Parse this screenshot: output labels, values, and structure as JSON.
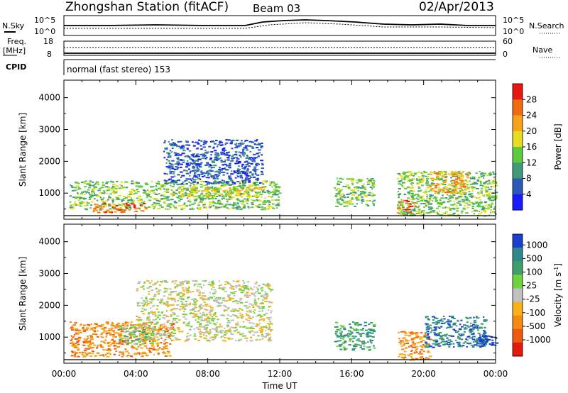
{
  "header": {
    "station": "Zhongshan Station (fitACF)",
    "beam": "Beam 03",
    "date": "02/Apr/2013"
  },
  "param_panels": {
    "nsky_label": "N.Sky",
    "nsky_ticks": [
      "10^5",
      "10^0"
    ],
    "nsearch_label": "N.Search",
    "nsearch_ticks": [
      "10^5",
      "10^0"
    ],
    "freq_label": "Freq.",
    "freq_unit": "[MHz]",
    "freq_ticks": [
      "18",
      "8"
    ],
    "nave_label": "Nave",
    "nave_ticks": [
      "60",
      "0"
    ],
    "cpid_label": "CPID",
    "cpid_text": "normal (fast stereo) 153"
  },
  "chart_data": [
    {
      "type": "heatmap",
      "title": "",
      "xlabel": "Time UT",
      "ylabel": "Slant Range [km]",
      "x_ticks": [
        "00:00",
        "04:00",
        "08:00",
        "12:00",
        "16:00",
        "20:00",
        "00:00"
      ],
      "xlim": [
        0,
        24
      ],
      "y_ticks": [
        1000,
        2000,
        3000,
        4000
      ],
      "ylim": [
        180,
        4550
      ],
      "colorbar": {
        "label": "Power [dB]",
        "ticks": [
          "4",
          "8",
          "12",
          "16",
          "20",
          "24",
          "28"
        ],
        "colors": [
          "#1a1aff",
          "#2a5ab5",
          "#3f9a7a",
          "#5fc83c",
          "#e6dc20",
          "#f7a21a",
          "#f06a12",
          "#e8160e"
        ]
      },
      "regions": [
        {
          "t": [
            0.3,
            12.0
          ],
          "r": [
            500,
            1400
          ],
          "level": 3
        },
        {
          "t": [
            6.0,
            11.2
          ],
          "r": [
            900,
            1200
          ],
          "level": 4
        },
        {
          "t": [
            1.6,
            4.5
          ],
          "r": [
            400,
            700
          ],
          "level": 6
        },
        {
          "t": [
            5.5,
            11.0
          ],
          "r": [
            1300,
            2700
          ],
          "level": 1
        },
        {
          "t": [
            15.0,
            17.2
          ],
          "r": [
            600,
            1500
          ],
          "level": 3
        },
        {
          "t": [
            18.5,
            19.5
          ],
          "r": [
            300,
            800
          ],
          "level": 6
        },
        {
          "t": [
            18.5,
            24.0
          ],
          "r": [
            300,
            1700
          ],
          "level": 3
        },
        {
          "t": [
            20.3,
            22.5
          ],
          "r": [
            1000,
            1700
          ],
          "level": 5
        }
      ]
    },
    {
      "type": "heatmap",
      "title": "",
      "xlabel": "Time UT",
      "ylabel": "Slant Range [km]",
      "x_ticks": [
        "00:00",
        "04:00",
        "08:00",
        "12:00",
        "16:00",
        "20:00",
        "00:00"
      ],
      "xlim": [
        0,
        24
      ],
      "y_ticks": [
        1000,
        2000,
        3000,
        4000
      ],
      "ylim": [
        180,
        4550
      ],
      "colorbar": {
        "label": "Velocity [m s",
        "label_sup": "-1",
        "label_end": "]",
        "ticks": [
          "1000",
          "500",
          "100",
          "25",
          "-25",
          "-100",
          "-500",
          "-1000"
        ],
        "colors": [
          "#1a3fd0",
          "#2e8a8a",
          "#3f9e6a",
          "#6ed43a",
          "#c0c0c0",
          "#f7b21a",
          "#f48a12",
          "#ef5a10",
          "#e6180e"
        ]
      },
      "regions": [
        {
          "t": [
            0.3,
            6.0
          ],
          "r": [
            400,
            1500
          ],
          "level": 6
        },
        {
          "t": [
            4.0,
            11.5
          ],
          "r": [
            900,
            2800
          ],
          "level": 4
        },
        {
          "t": [
            3.0,
            5.0
          ],
          "r": [
            800,
            1400
          ],
          "level": 3
        },
        {
          "t": [
            15.0,
            17.2
          ],
          "r": [
            600,
            1500
          ],
          "level": 2
        },
        {
          "t": [
            18.5,
            20.3
          ],
          "r": [
            300,
            1200
          ],
          "level": 6
        },
        {
          "t": [
            20.0,
            23.5
          ],
          "r": [
            700,
            1700
          ],
          "level": 1
        },
        {
          "t": [
            23.0,
            24.0
          ],
          "r": [
            700,
            1100
          ],
          "level": 0
        }
      ]
    }
  ]
}
